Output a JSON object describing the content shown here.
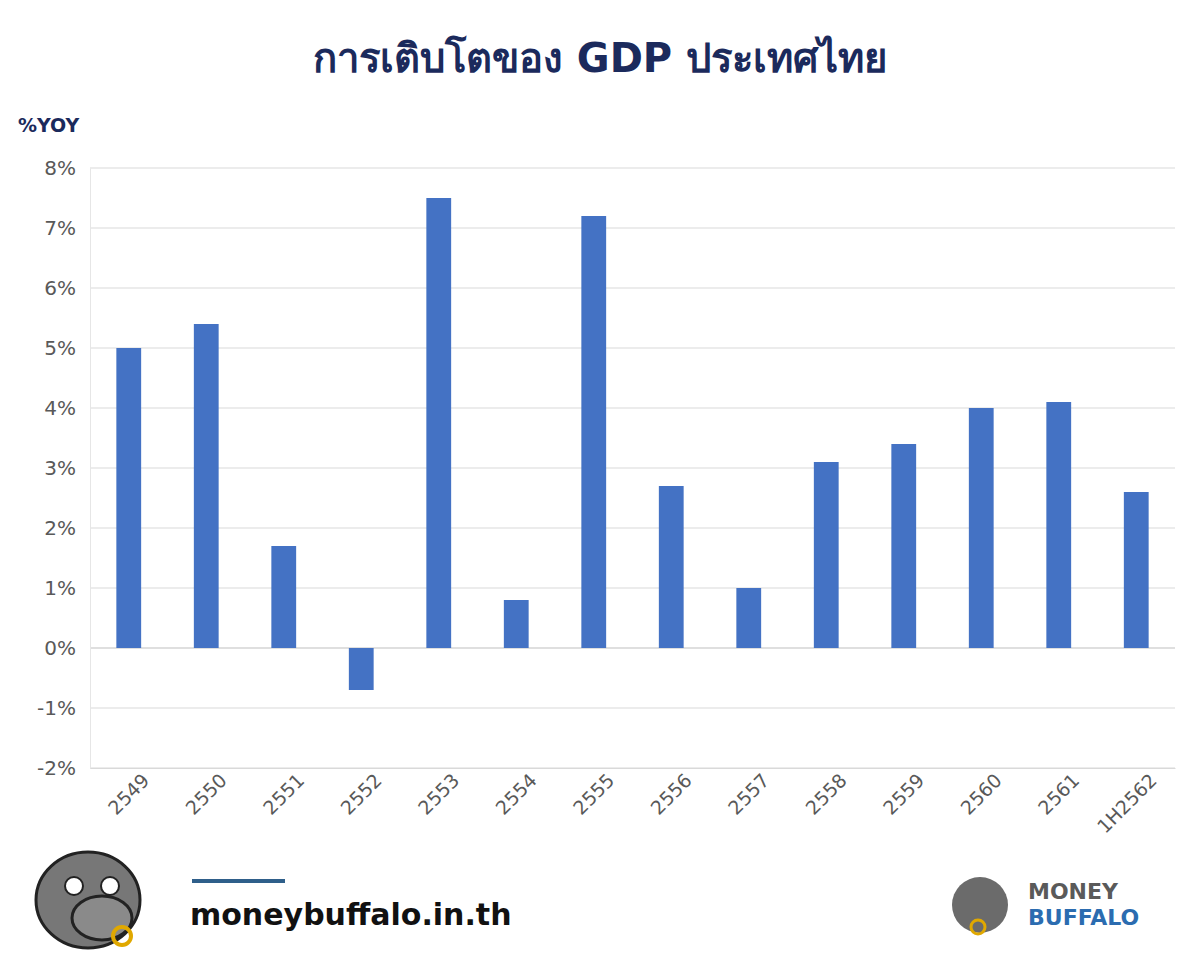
{
  "chart_data": {
    "type": "bar",
    "title": "การเติบโตของ GDP ประเทศไทย",
    "y_label": "%YOY",
    "categories": [
      "2549",
      "2550",
      "2551",
      "2552",
      "2553",
      "2554",
      "2555",
      "2556",
      "2557",
      "2558",
      "2559",
      "2560",
      "2561",
      "1H2562"
    ],
    "values": [
      5.0,
      5.4,
      1.7,
      -0.7,
      7.5,
      0.8,
      7.2,
      2.7,
      1.0,
      3.1,
      3.4,
      4.0,
      4.1,
      2.6
    ],
    "color": "#4472c4",
    "ylim": [
      -2,
      8
    ],
    "yticks": [
      {
        "value": -2,
        "label": "-2%"
      },
      {
        "value": -1,
        "label": "-1%"
      },
      {
        "value": 0,
        "label": "0%"
      },
      {
        "value": 1,
        "label": "1%"
      },
      {
        "value": 2,
        "label": "2%"
      },
      {
        "value": 3,
        "label": "3%"
      },
      {
        "value": 4,
        "label": "4%"
      },
      {
        "value": 5,
        "label": "5%"
      },
      {
        "value": 6,
        "label": "6%"
      },
      {
        "value": 7,
        "label": "7%"
      },
      {
        "value": 8,
        "label": "8%"
      }
    ],
    "grid": true
  },
  "footer": {
    "url": "moneybuffalo.in.th",
    "brand": [
      "MONEY",
      "BUFFALO"
    ]
  }
}
